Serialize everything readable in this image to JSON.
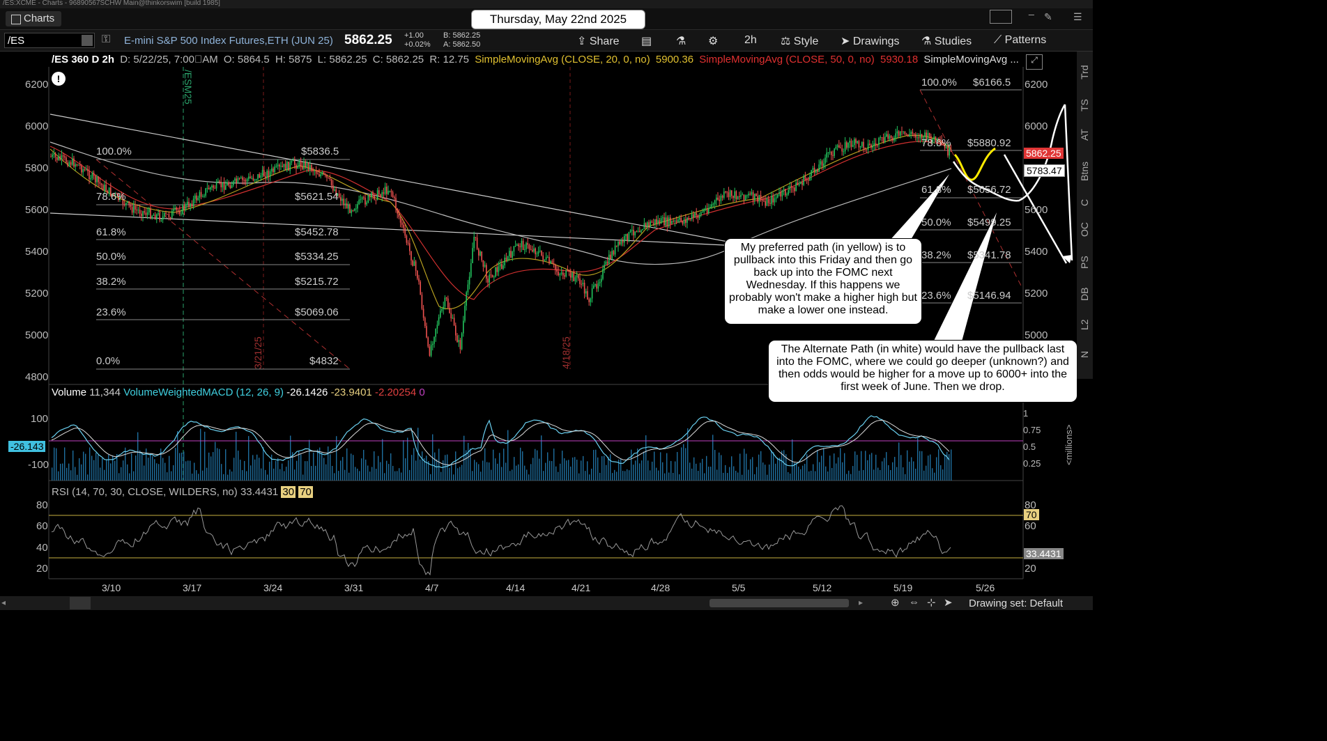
{
  "window": {
    "title": "/ES:XCME - Charts - 96890567SCHW Main@thinkorswim [build 1985]"
  },
  "tabs": {
    "charts_label": "Charts"
  },
  "date_banner": "Thursday, May 22nd 2025",
  "toolbar": {
    "symbol": "/ES",
    "instrument_name": "E-mini S&P 500 Index Futures,ETH (JUN 25)",
    "last": "5862.25",
    "change": "+1.00",
    "change_pct": "+0.02%",
    "bid": "B: 5862.25",
    "ask": "A: 5862.50",
    "share": "Share",
    "timeframe": "2h",
    "style": "Style",
    "drawings": "Drawings",
    "studies": "Studies",
    "patterns": "Patterns"
  },
  "study_line": {
    "label": "/ES 360 D 2h",
    "date": "D: 5/22/25, 7:00\u0000AM",
    "open": "O: 5864.5",
    "high": "H: 5875",
    "low": "L: 5862.25",
    "close": "C: 5862.25",
    "range": "R: 12.75",
    "sma20": "SimpleMovingAvg (CLOSE, 20, 0, no)",
    "sma20_val": "5900.36",
    "sma50": "SimpleMovingAvg (CLOSE, 50, 0, no)",
    "sma50_val": "5930.18",
    "sma_more": "SimpleMovingAvg ..."
  },
  "price_axis": [
    "6200",
    "6000",
    "5800",
    "5600",
    "5400",
    "5200",
    "5000",
    "4800"
  ],
  "right_axis": [
    "6200",
    "6000",
    "5600",
    "5400",
    "5200",
    "5000"
  ],
  "date_axis": [
    "3/10",
    "3/17",
    "3/24",
    "3/31",
    "4/7",
    "4/14",
    "4/21",
    "4/28",
    "5/5",
    "5/12",
    "5/19",
    "5/26"
  ],
  "vertical_labels": [
    "/ESM25",
    "3/21/25",
    "4/18/25"
  ],
  "fib_left": [
    {
      "pct": "100.0%",
      "price": "$5836.5"
    },
    {
      "pct": "78.6%",
      "price": "$5621.54"
    },
    {
      "pct": "61.8%",
      "price": "$5452.78"
    },
    {
      "pct": "50.0%",
      "price": "$5334.25"
    },
    {
      "pct": "38.2%",
      "price": "$5215.72"
    },
    {
      "pct": "23.6%",
      "price": "$5069.06"
    },
    {
      "pct": "0.0%",
      "price": "$4832"
    }
  ],
  "fib_right": [
    {
      "pct": "100.0%",
      "price": "$6166.5"
    },
    {
      "pct": "78.6%",
      "price": "$5880.92"
    },
    {
      "pct": "61.8%",
      "price": "$5656.72"
    },
    {
      "pct": "50.0%",
      "price": "$5499.25"
    },
    {
      "pct": "38.2%",
      "price": "$5341.78"
    },
    {
      "pct": "23.6%",
      "price": "$5146.94"
    }
  ],
  "price_tags": {
    "last": "5862.25",
    "other": "5783.47"
  },
  "notes": {
    "yellow": "My preferred path (in yellow) is to pullback into this Friday and then go back up into the FOMC next Wednesday.  If this happens we probably won't make a higher high but make a lower one instead.",
    "white": "The Alternate Path (in white) would have the pullback last into the FOMC, where we could go deeper (unknown?) and then odds would be higher for a move up to 6000+ into the first week of June.  Then we drop."
  },
  "right_sidebar": [
    "Trd",
    "TS",
    "AT",
    "Btns",
    "C",
    "OC",
    "PS",
    "DB",
    "L2",
    "N"
  ],
  "volume_pane": {
    "label": "Volume",
    "volume": "11,344",
    "macd": "VolumeWeightedMACD (12, 26, 9)",
    "v1": "-26.1426",
    "v2": "-23.9401",
    "v3": "-2.20254",
    "v4": "0",
    "axis": [
      "100",
      "-100"
    ],
    "right_axis": [
      "1",
      "0.75",
      "0.5",
      "0.25"
    ],
    "units": "<millions>",
    "tag": "-26.143"
  },
  "rsi_pane": {
    "label": "RSI (14, 70, 30, CLOSE, WILDERS, no)",
    "value": "33.4431",
    "ob": "30",
    "os": "70",
    "axis": [
      "80",
      "60",
      "40",
      "20"
    ],
    "tag_70": "70",
    "tag_val": "33.4431"
  },
  "bottom": {
    "drawing_set": "Drawing set: Default"
  }
}
